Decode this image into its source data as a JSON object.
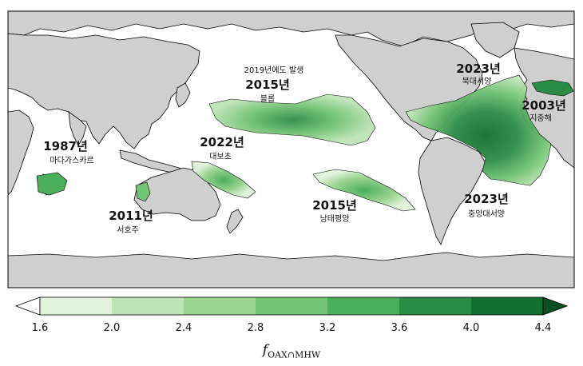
{
  "labels": [
    {
      "id": "blob",
      "year": "2015년",
      "region": "블롭",
      "note": "2019년에도 발생"
    },
    {
      "id": "north-atlantic",
      "year": "2023년",
      "region": "북대서양"
    },
    {
      "id": "mediterranean",
      "year": "2003년",
      "region": "지중해"
    },
    {
      "id": "madagascar",
      "year": "1987년",
      "region": "마다가스카르"
    },
    {
      "id": "great-barrier",
      "year": "2022년",
      "region": "대보초"
    },
    {
      "id": "west-australia",
      "year": "2011년",
      "region": "서호주"
    },
    {
      "id": "south-pacific",
      "year": "2015년",
      "region": "남태평양"
    },
    {
      "id": "central-atlantic",
      "year": "2023년",
      "region": "중앙대서양"
    }
  ],
  "colorbar": {
    "ticks": [
      "1.6",
      "2.0",
      "2.4",
      "2.8",
      "3.2",
      "3.6",
      "4.0",
      "4.4"
    ],
    "colors": [
      "#e2f3dc",
      "#bde4b5",
      "#9cd491",
      "#74c476",
      "#4aae5d",
      "#2b8c46",
      "#11702f"
    ],
    "under_color": "#ffffff",
    "over_color": "#0a4f20",
    "title_main": "f",
    "title_sub": "OAX∩MHW"
  },
  "colors": {
    "land": "#cfcfcf",
    "ocean": "#ffffff",
    "coast": "#000000"
  }
}
